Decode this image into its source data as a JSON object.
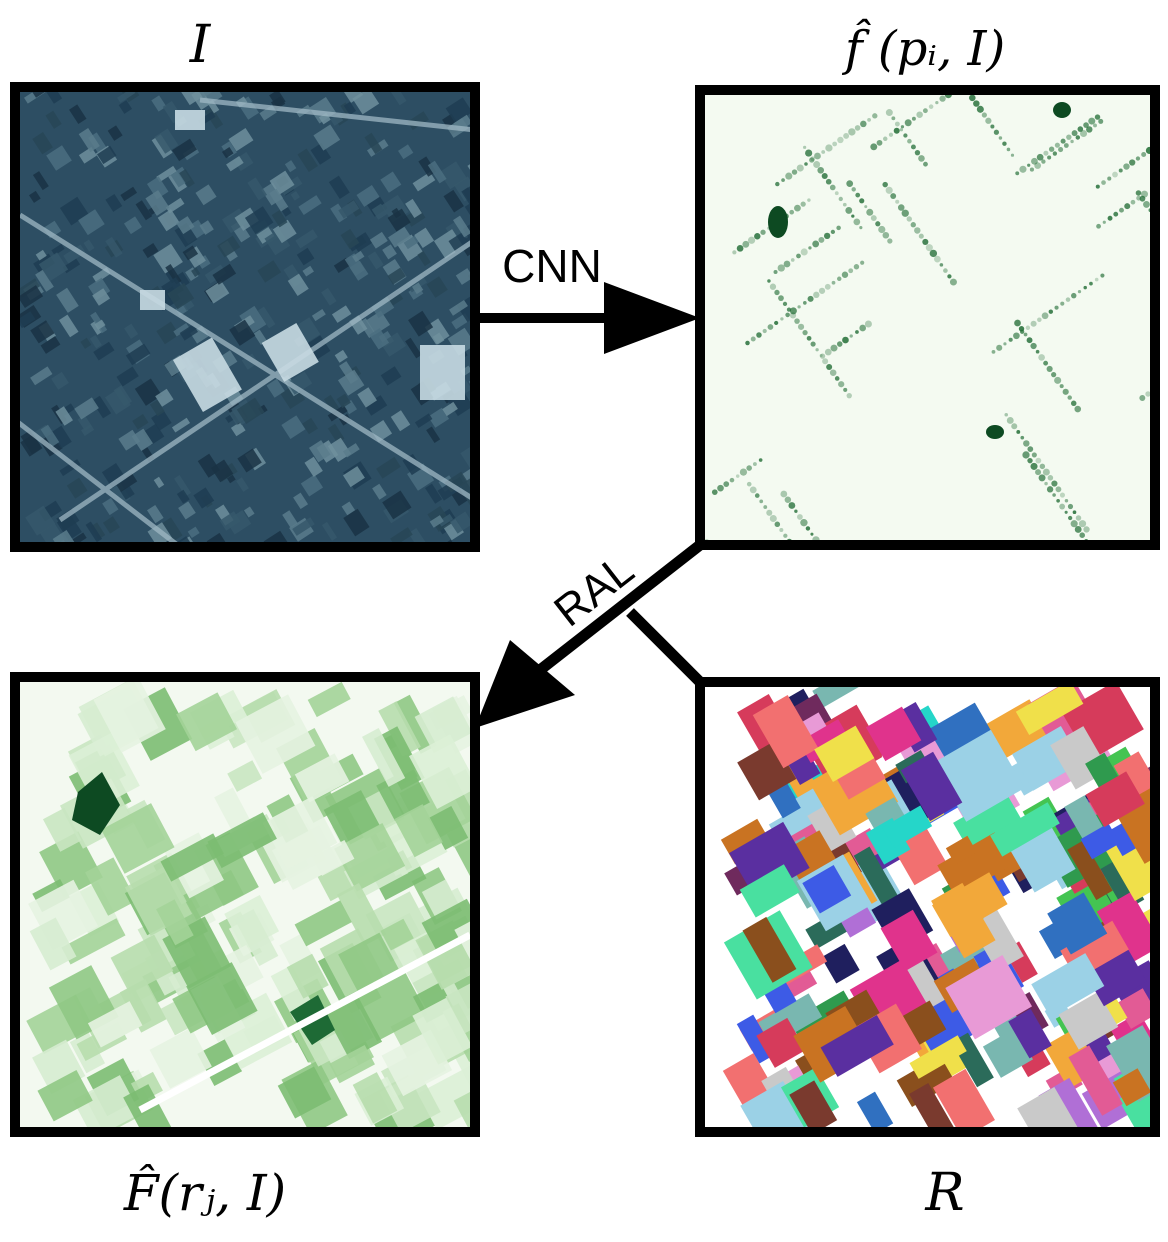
{
  "panels": {
    "image": {
      "label": "I"
    },
    "pixel_prediction": {
      "label": "f̂ (pᵢ, I)"
    },
    "region_prediction": {
      "label": "F̂(rⱼ, I)"
    },
    "regions": {
      "label": "R"
    }
  },
  "arrows": {
    "cnn": {
      "label": "CNN"
    },
    "ral": {
      "label": "RAL"
    }
  },
  "colors": {
    "frame": "#000000",
    "satellite_base": "#2d4e63",
    "green_dark": "#0d4a22",
    "green_light": "#eef7ea"
  }
}
